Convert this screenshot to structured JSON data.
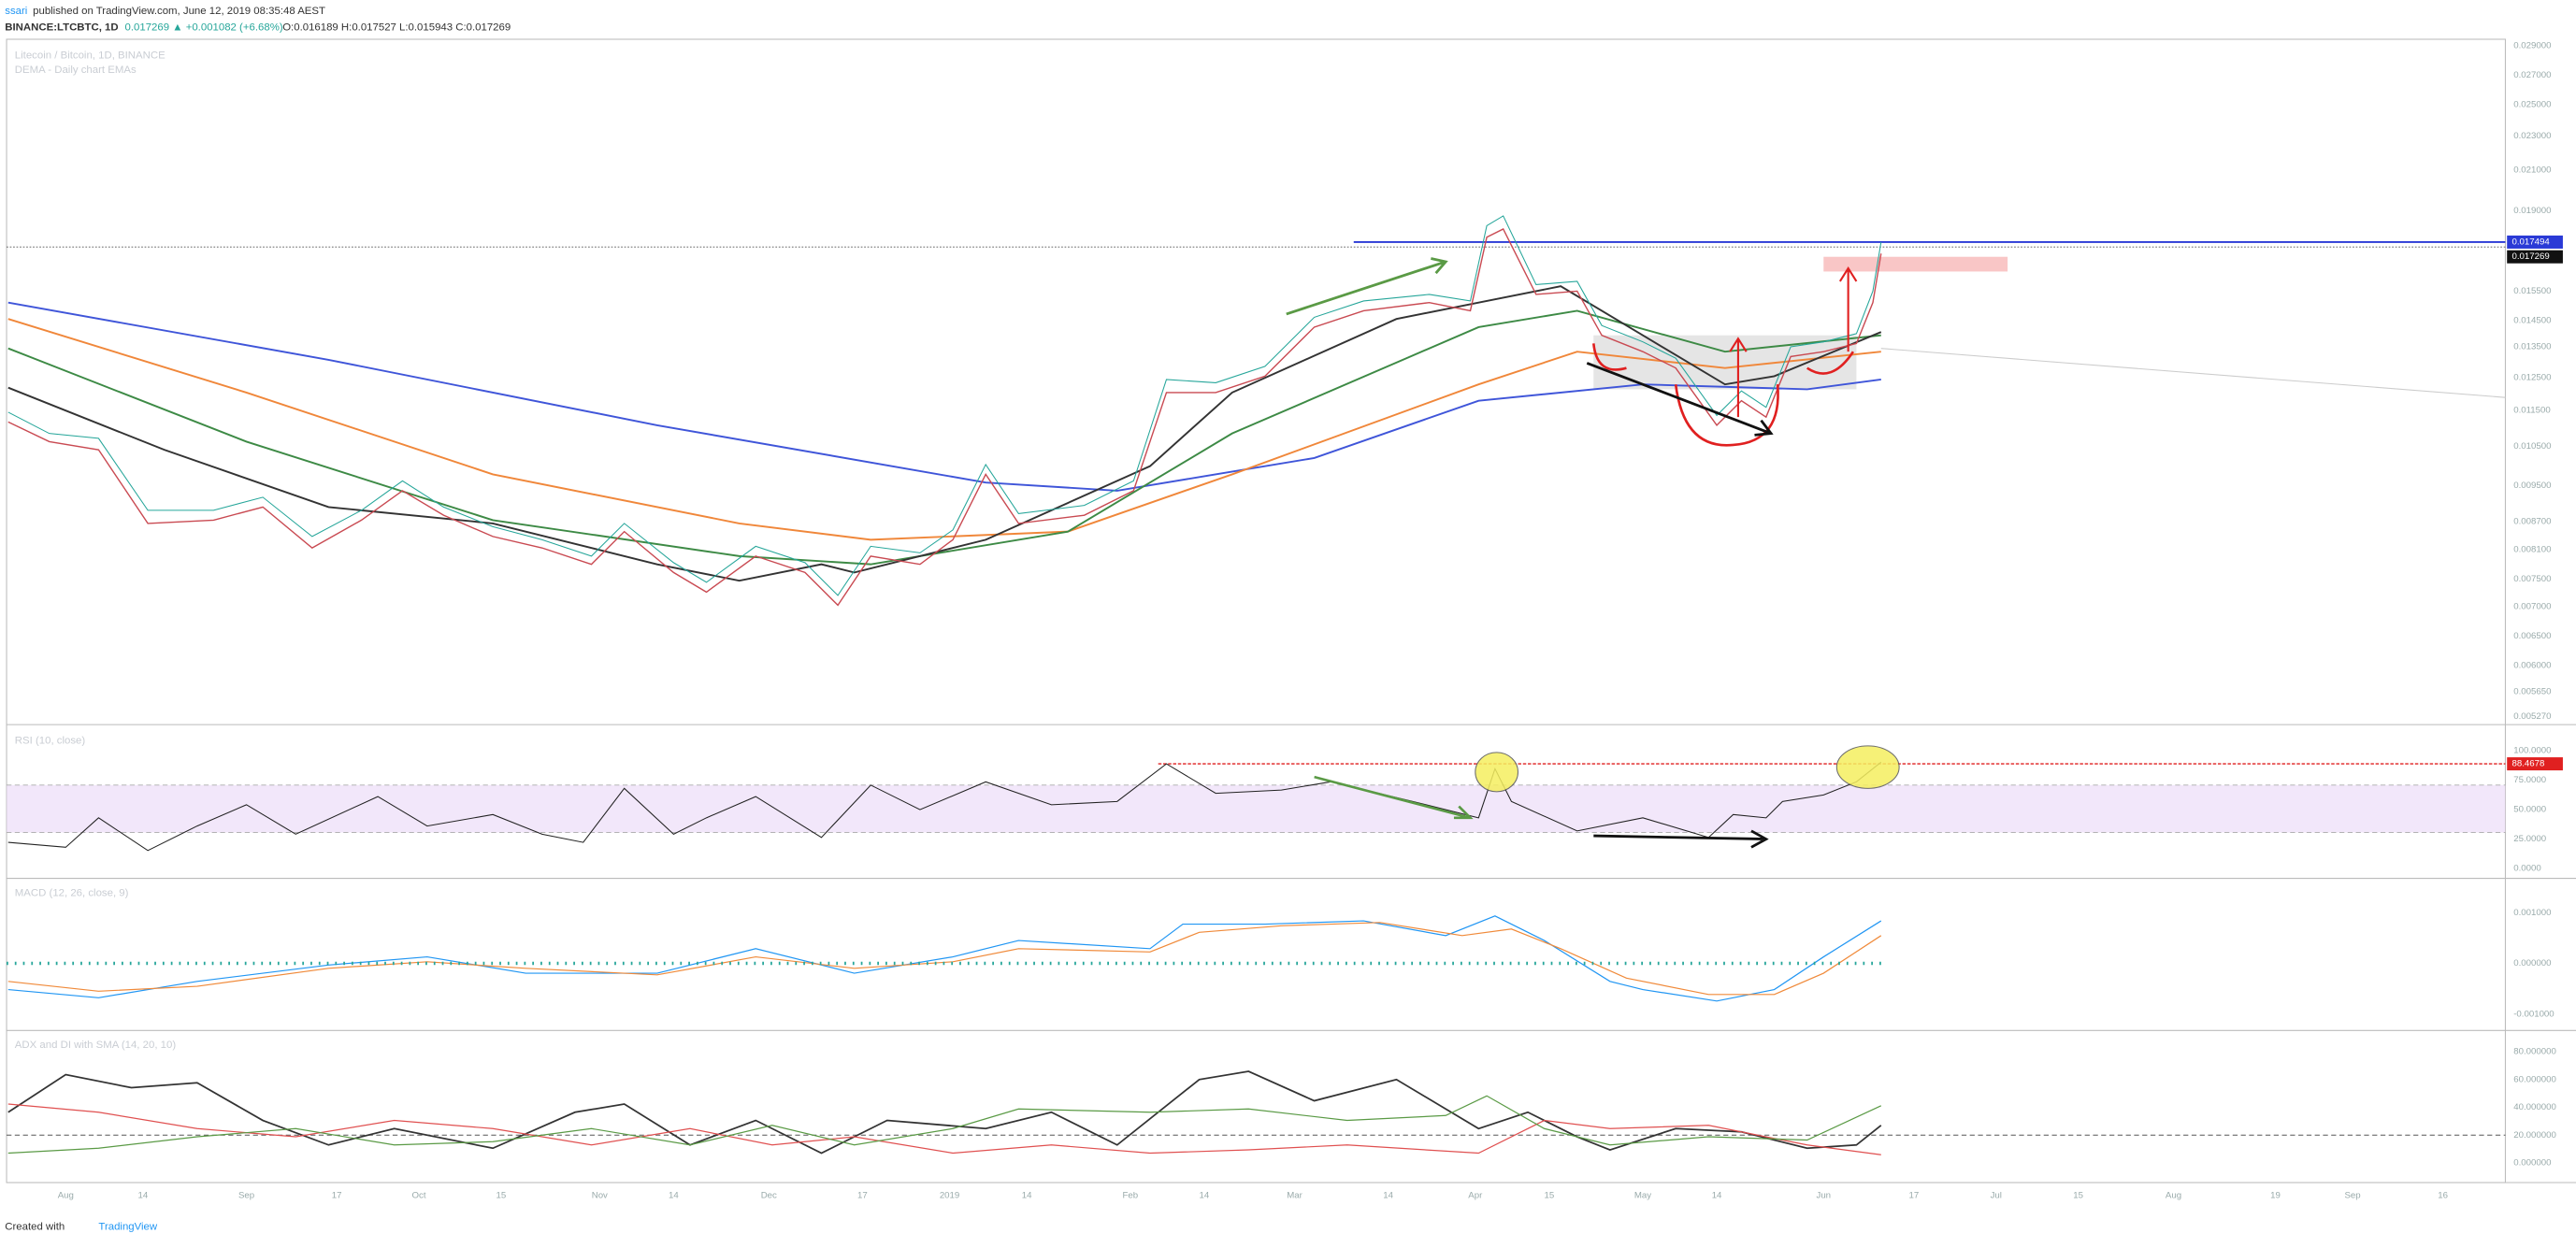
{
  "header": {
    "author": "ssari",
    "published": "published on TradingView.com, June 12, 2019 08:35:48 AEST",
    "symbol": "BINANCE:LTCBTC, 1D",
    "quote": "0.017269 ▲ +0.001082 (+6.68%)",
    "ohlc": "O:0.016189 H:0.017527 L:0.015943 C:0.017269"
  },
  "main": {
    "title": "Litecoin / Bitcoin, 1D, BINANCE",
    "subtitle": "DEMA - Daily chart EMAs",
    "price_axis": [
      "0.029000",
      "0.027000",
      "0.025000",
      "0.023000",
      "0.021000",
      "0.019000",
      "0.015500",
      "0.014500",
      "0.013500",
      "0.012500",
      "0.011500",
      "0.010500",
      "0.009500",
      "0.008700",
      "0.008100",
      "0.007500",
      "0.007000",
      "0.006500",
      "0.006000",
      "0.005650",
      "0.005270"
    ],
    "level_tag": "0.017494",
    "last_tag": "0.017269"
  },
  "rsi": {
    "title": "RSI (10, close)",
    "axis": [
      "100.0000",
      "75.0000",
      "50.0000",
      "25.0000",
      "0.0000"
    ],
    "tag": "88.4678"
  },
  "macd": {
    "title": "MACD (12, 26, close, 9)",
    "axis": [
      "0.001000",
      "0.000000",
      "-0.001000"
    ]
  },
  "adx": {
    "title": "ADX and DI with SMA (14, 20, 10)",
    "axis": [
      "80.000000",
      "60.000000",
      "40.000000",
      "20.000000",
      "0.000000"
    ]
  },
  "time_axis": [
    "Aug",
    "14",
    "Sep",
    "17",
    "Oct",
    "15",
    "Nov",
    "14",
    "Dec",
    "17",
    "2019",
    "14",
    "Feb",
    "14",
    "Mar",
    "14",
    "Apr",
    "15",
    "May",
    "14",
    "Jun",
    "17",
    "Jul",
    "15",
    "Aug",
    "19",
    "Sep",
    "16"
  ],
  "footer": {
    "created": "Created with",
    "brand": "TradingView"
  }
}
